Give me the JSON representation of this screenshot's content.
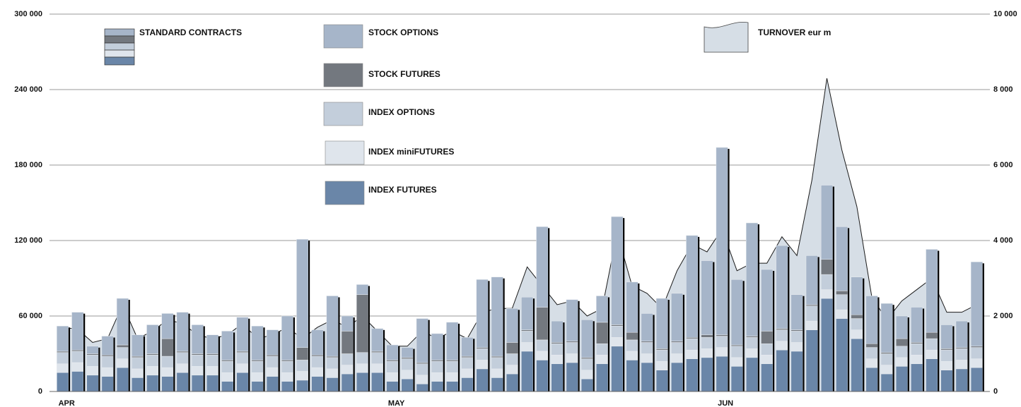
{
  "chart_data": {
    "type": "bar",
    "legend_title": "STANDARD CONTRACTS",
    "categories": [
      "APR",
      null,
      null,
      null,
      null,
      null,
      null,
      null,
      null,
      null,
      null,
      null,
      null,
      null,
      null,
      null,
      null,
      null,
      null,
      null,
      null,
      null,
      "MAY",
      null,
      null,
      null,
      null,
      null,
      null,
      null,
      null,
      null,
      null,
      null,
      null,
      null,
      null,
      null,
      null,
      null,
      null,
      null,
      null,
      null,
      "JUN",
      null,
      null,
      null,
      null,
      null,
      null,
      null,
      null,
      null,
      null,
      null,
      null,
      null,
      null,
      null,
      null,
      null
    ],
    "series": [
      {
        "name": "INDEX FUTURES",
        "color": "#6a86a8",
        "values": [
          15000,
          16000,
          13000,
          12000,
          19000,
          11000,
          13000,
          12000,
          15000,
          13000,
          13000,
          8000,
          15000,
          8000,
          12000,
          8000,
          9000,
          12000,
          11000,
          14000,
          15000,
          15000,
          8000,
          10000,
          6000,
          8000,
          8000,
          11000,
          18000,
          11000,
          14000,
          32000,
          25000,
          22000,
          23000,
          10000,
          22000,
          36000,
          25000,
          23000,
          17000,
          23000,
          26000,
          27000,
          28000,
          20000,
          27000,
          22000,
          33000,
          32000,
          49000,
          74000,
          58000,
          42000,
          19000,
          14000,
          20000,
          22000,
          26000,
          17000,
          18000,
          19000
        ]
      },
      {
        "name": "INDEX miniFUTURES",
        "color": "#dfe5ec",
        "values": [
          7000,
          7000,
          7000,
          7000,
          7000,
          7000,
          7000,
          7000,
          7000,
          7000,
          7000,
          7000,
          7000,
          7000,
          7000,
          7000,
          7000,
          7000,
          7000,
          7000,
          7000,
          7000,
          7000,
          7000,
          7000,
          7000,
          7000,
          7000,
          7000,
          7000,
          7000,
          7000,
          7000,
          7000,
          7000,
          7000,
          7000,
          7000,
          7000,
          7000,
          7000,
          7000,
          7000,
          7000,
          7000,
          7000,
          7000,
          7000,
          7000,
          7000,
          7000,
          7000,
          7000,
          7000,
          7000,
          7000,
          7000,
          7000,
          7000,
          7000,
          7000,
          7000
        ]
      },
      {
        "name": "INDEX OPTIONS",
        "color": "#c3cedb",
        "values": [
          9000,
          9000,
          9000,
          9000,
          9000,
          9000,
          9000,
          9000,
          9000,
          9000,
          9000,
          9000,
          9000,
          9000,
          9000,
          9000,
          9000,
          9000,
          9000,
          9000,
          9000,
          9000,
          9000,
          9000,
          9000,
          9000,
          9000,
          9000,
          9000,
          9000,
          9000,
          9000,
          9000,
          9000,
          9000,
          9000,
          9000,
          9000,
          9000,
          9000,
          9000,
          9000,
          9000,
          9000,
          9000,
          9000,
          9000,
          9000,
          9000,
          9000,
          12000,
          12000,
          12000,
          9000,
          9000,
          9000,
          9000,
          9000,
          9000,
          9000,
          9000,
          9000
        ]
      },
      {
        "name": "STOCK FUTURES",
        "color": "#73787f",
        "values": [
          1000,
          1000,
          1000,
          1000,
          2000,
          1000,
          1000,
          14000,
          1000,
          1000,
          1000,
          1000,
          1000,
          1000,
          1000,
          1000,
          10000,
          1000,
          1000,
          18000,
          46000,
          1000,
          1000,
          1000,
          1000,
          1000,
          1000,
          1000,
          1000,
          1000,
          9000,
          1000,
          26000,
          1000,
          1000,
          1000,
          17000,
          1000,
          6000,
          1000,
          1000,
          1000,
          1000,
          2000,
          1000,
          1000,
          1000,
          10000,
          1000,
          1000,
          1000,
          12000,
          3000,
          3000,
          3000,
          1000,
          6000,
          1000,
          5000,
          1000,
          1000,
          1000
        ]
      },
      {
        "name": "STOCK OPTIONS",
        "color": "#a6b5c9",
        "values": [
          20000,
          30000,
          6000,
          15000,
          37000,
          17000,
          23000,
          20000,
          31000,
          23000,
          15000,
          23000,
          27000,
          27000,
          20000,
          35000,
          86000,
          20000,
          48000,
          12000,
          8000,
          18000,
          12000,
          8000,
          35000,
          21000,
          30000,
          15000,
          54000,
          63000,
          27000,
          26000,
          64000,
          17000,
          33000,
          30000,
          21000,
          86000,
          40000,
          22000,
          40000,
          38000,
          81000,
          59000,
          149000,
          52000,
          90000,
          49000,
          66000,
          28000,
          39000,
          59000,
          51000,
          30000,
          38000,
          39000,
          18000,
          28000,
          66000,
          19000,
          21000,
          67000
        ]
      },
      {
        "name": "TURNOVER eur m",
        "type": "area",
        "axis": "y2",
        "color": "#d6dee6",
        "values": [
          1700,
          1650,
          1300,
          1400,
          2300,
          1400,
          1600,
          1900,
          1800,
          1500,
          1400,
          1500,
          1800,
          1400,
          1500,
          1700,
          1400,
          1700,
          1900,
          1700,
          2000,
          1600,
          1200,
          1200,
          1600,
          1400,
          1600,
          1400,
          2100,
          2200,
          2200,
          3300,
          2800,
          2300,
          2400,
          2000,
          2200,
          4200,
          2800,
          2600,
          2200,
          3200,
          3900,
          3700,
          4300,
          3200,
          3400,
          3400,
          4100,
          3600,
          5600,
          8300,
          6400,
          4900,
          2500,
          1900,
          2400,
          2700,
          3000,
          2100,
          2100,
          2300
        ]
      }
    ],
    "ylim": [
      0,
      300000
    ],
    "yticks": [
      0,
      {
        "value": 60000,
        "label": "60 000"
      },
      {
        "value": 120000,
        "label": "120 000"
      },
      {
        "value": 180000,
        "label": "180 000"
      },
      {
        "value": 240000,
        "label": "240 000"
      },
      {
        "value": 300000,
        "label": "300 000"
      }
    ],
    "y2lim": [
      0,
      10000
    ],
    "y2ticks": [
      0,
      {
        "value": 2000,
        "label": "2 000"
      },
      {
        "value": 4000,
        "label": "4 000"
      },
      {
        "value": 6000,
        "label": "6 000"
      },
      {
        "value": 8000,
        "label": "8 000"
      },
      {
        "value": 10000,
        "label": "10 000"
      }
    ],
    "grid": true
  }
}
